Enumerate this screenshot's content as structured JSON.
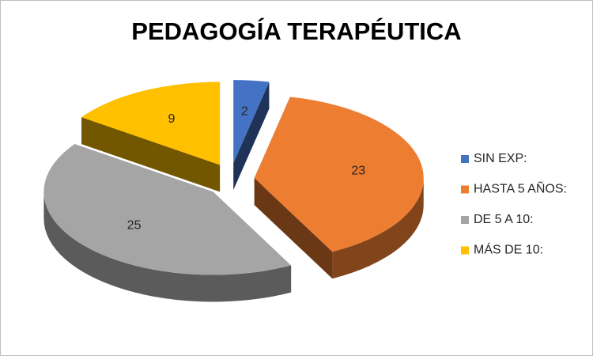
{
  "chart_data": {
    "type": "pie",
    "title": "PEDAGOGÍA TERAPÉUTICA",
    "categories": [
      "SIN EXP:",
      "HASTA 5 AÑOS:",
      "DE 5 A 10:",
      "MÁS DE 10:"
    ],
    "values": [
      2,
      23,
      25,
      9
    ],
    "colors": [
      "#4472c4",
      "#ed7d31",
      "#a5a5a5",
      "#ffc000"
    ],
    "legend": "right"
  }
}
